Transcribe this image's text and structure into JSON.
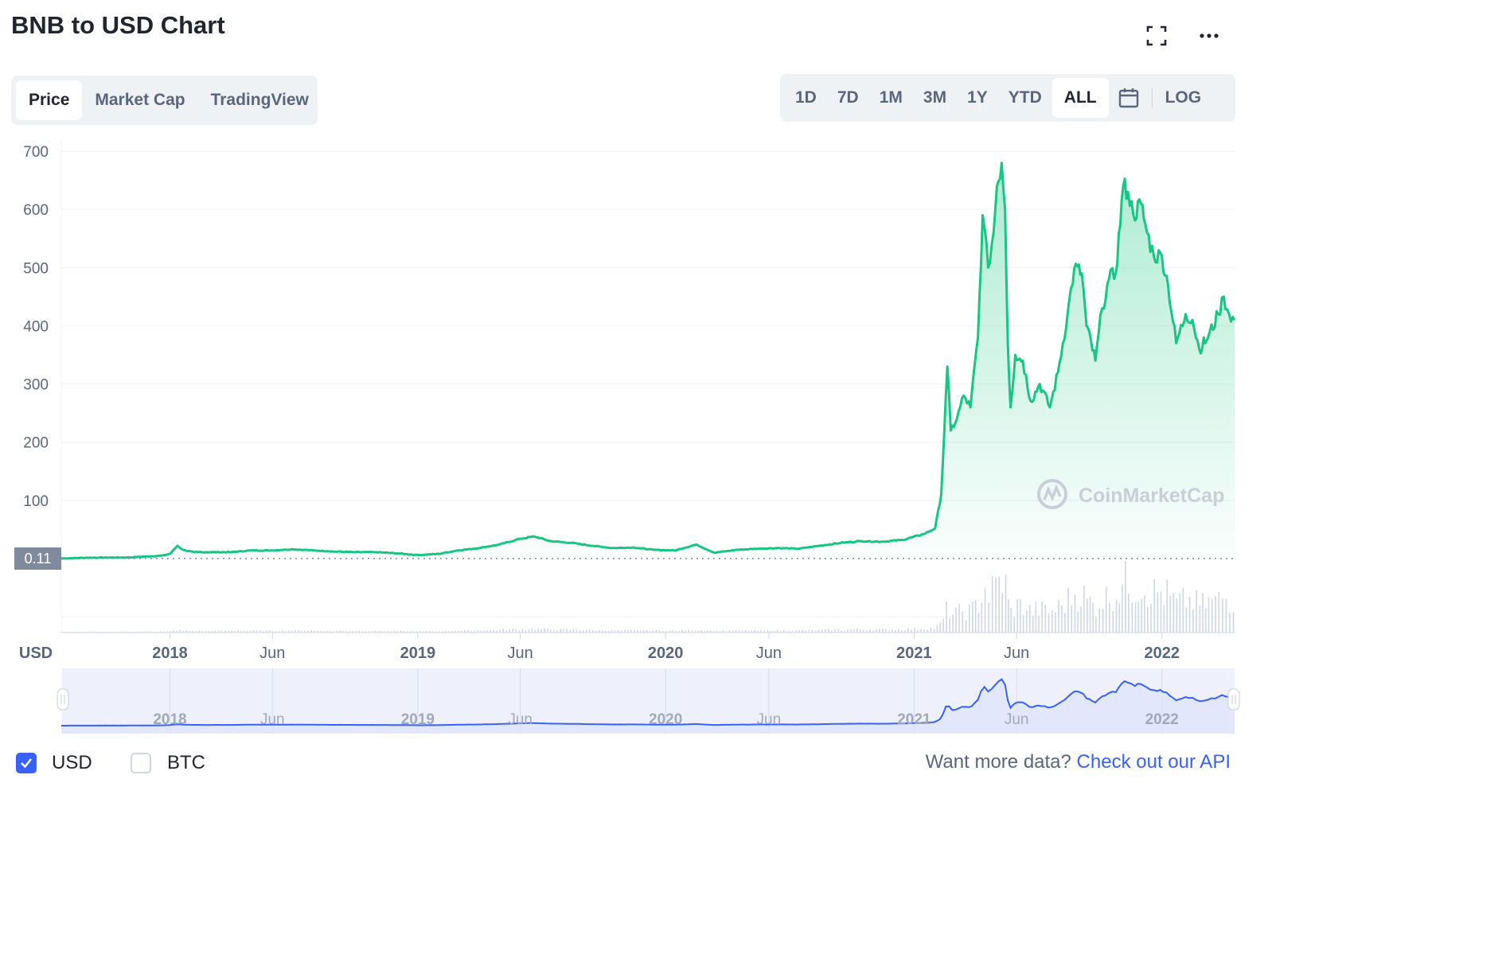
{
  "header": {
    "title": "BNB to USD Chart",
    "fullscreen_icon": "fullscreen-icon",
    "more_icon": "more-horizontal-icon"
  },
  "view_tabs": {
    "items": [
      {
        "label": "Price",
        "active": true
      },
      {
        "label": "Market Cap",
        "active": false
      },
      {
        "label": "TradingView",
        "active": false
      }
    ]
  },
  "range_tabs": {
    "items": [
      {
        "label": "1D",
        "active": false
      },
      {
        "label": "7D",
        "active": false
      },
      {
        "label": "1M",
        "active": false
      },
      {
        "label": "3M",
        "active": false
      },
      {
        "label": "1Y",
        "active": false
      },
      {
        "label": "YTD",
        "active": false
      },
      {
        "label": "ALL",
        "active": true
      }
    ],
    "calendar_icon": "calendar-icon",
    "log_label": "LOG"
  },
  "watermark": "CoinMarketCap",
  "current_price_label": "0.11",
  "axis_unit": "USD",
  "legend": {
    "usd": {
      "label": "USD",
      "checked": true
    },
    "btc": {
      "label": "BTC",
      "checked": false
    }
  },
  "footer": {
    "prefix": "Want more data?",
    "link": "Check out our API"
  },
  "colors": {
    "line": "#16c784",
    "navigator": "#3861fb",
    "volume": "#cfd6e4",
    "accent": "#3861fb"
  },
  "chart_data": {
    "type": "area",
    "title": "BNB to USD Chart",
    "ylabel": "USD",
    "ylim": [
      0,
      700
    ],
    "yticks": [
      100,
      200,
      300,
      400,
      500,
      600,
      700
    ],
    "xticks": [
      "2018",
      "Jun",
      "2019",
      "Jun",
      "2020",
      "Jun",
      "2021",
      "Jun",
      "2022"
    ],
    "grid": true,
    "series": [
      {
        "values_by_date": [
          [
            "2017-07-25",
            0.11
          ],
          [
            "2017-09-01",
            1.5
          ],
          [
            "2017-11-01",
            1.9
          ],
          [
            "2017-12-20",
            5
          ],
          [
            "2018-01-01",
            8
          ],
          [
            "2018-01-12",
            22
          ],
          [
            "2018-01-20",
            15
          ],
          [
            "2018-02-05",
            11
          ],
          [
            "2018-03-01",
            11
          ],
          [
            "2018-04-01",
            11
          ],
          [
            "2018-05-01",
            14
          ],
          [
            "2018-06-01",
            14
          ],
          [
            "2018-07-01",
            16
          ],
          [
            "2018-08-01",
            14
          ],
          [
            "2018-09-01",
            12
          ],
          [
            "2018-10-01",
            11
          ],
          [
            "2018-11-01",
            11
          ],
          [
            "2018-12-01",
            9
          ],
          [
            "2019-01-01",
            6
          ],
          [
            "2019-02-01",
            8
          ],
          [
            "2019-03-01",
            14
          ],
          [
            "2019-04-01",
            18
          ],
          [
            "2019-05-01",
            24
          ],
          [
            "2019-06-01",
            34
          ],
          [
            "2019-06-22",
            38
          ],
          [
            "2019-07-15",
            30
          ],
          [
            "2019-08-15",
            27
          ],
          [
            "2019-09-15",
            22
          ],
          [
            "2019-10-15",
            18
          ],
          [
            "2019-11-15",
            19
          ],
          [
            "2019-12-15",
            15
          ],
          [
            "2020-01-15",
            14
          ],
          [
            "2020-02-15",
            24
          ],
          [
            "2020-03-13",
            10
          ],
          [
            "2020-04-15",
            15
          ],
          [
            "2020-05-15",
            17
          ],
          [
            "2020-06-15",
            18
          ],
          [
            "2020-07-15",
            17
          ],
          [
            "2020-08-15",
            22
          ],
          [
            "2020-09-15",
            27
          ],
          [
            "2020-10-15",
            30
          ],
          [
            "2020-11-15",
            29
          ],
          [
            "2020-12-15",
            32
          ],
          [
            "2021-01-15",
            42
          ],
          [
            "2021-02-01",
            52
          ],
          [
            "2021-02-10",
            110
          ],
          [
            "2021-02-19",
            330
          ],
          [
            "2021-02-24",
            220
          ],
          [
            "2021-03-05",
            240
          ],
          [
            "2021-03-15",
            280
          ],
          [
            "2021-03-25",
            260
          ],
          [
            "2021-04-05",
            380
          ],
          [
            "2021-04-12",
            590
          ],
          [
            "2021-04-20",
            500
          ],
          [
            "2021-04-28",
            560
          ],
          [
            "2021-05-03",
            640
          ],
          [
            "2021-05-10",
            680
          ],
          [
            "2021-05-15",
            600
          ],
          [
            "2021-05-19",
            370
          ],
          [
            "2021-05-23",
            260
          ],
          [
            "2021-05-30",
            350
          ],
          [
            "2021-06-10",
            340
          ],
          [
            "2021-06-22",
            270
          ],
          [
            "2021-07-05",
            300
          ],
          [
            "2021-07-20",
            260
          ],
          [
            "2021-08-01",
            320
          ],
          [
            "2021-08-15",
            420
          ],
          [
            "2021-08-25",
            500
          ],
          [
            "2021-09-05",
            490
          ],
          [
            "2021-09-12",
            400
          ],
          [
            "2021-09-25",
            340
          ],
          [
            "2021-10-05",
            430
          ],
          [
            "2021-10-15",
            480
          ],
          [
            "2021-10-25",
            490
          ],
          [
            "2021-11-05",
            640
          ],
          [
            "2021-11-12",
            630
          ],
          [
            "2021-11-20",
            590
          ],
          [
            "2021-12-01",
            610
          ],
          [
            "2021-12-10",
            560
          ],
          [
            "2021-12-20",
            520
          ],
          [
            "2022-01-01",
            520
          ],
          [
            "2022-01-10",
            470
          ],
          [
            "2022-01-22",
            370
          ],
          [
            "2022-02-05",
            420
          ],
          [
            "2022-02-15",
            410
          ],
          [
            "2022-02-25",
            360
          ],
          [
            "2022-03-10",
            380
          ],
          [
            "2022-03-25",
            420
          ],
          [
            "2022-04-02",
            450
          ],
          [
            "2022-04-10",
            420
          ],
          [
            "2022-04-18",
            410
          ]
        ]
      }
    ]
  }
}
